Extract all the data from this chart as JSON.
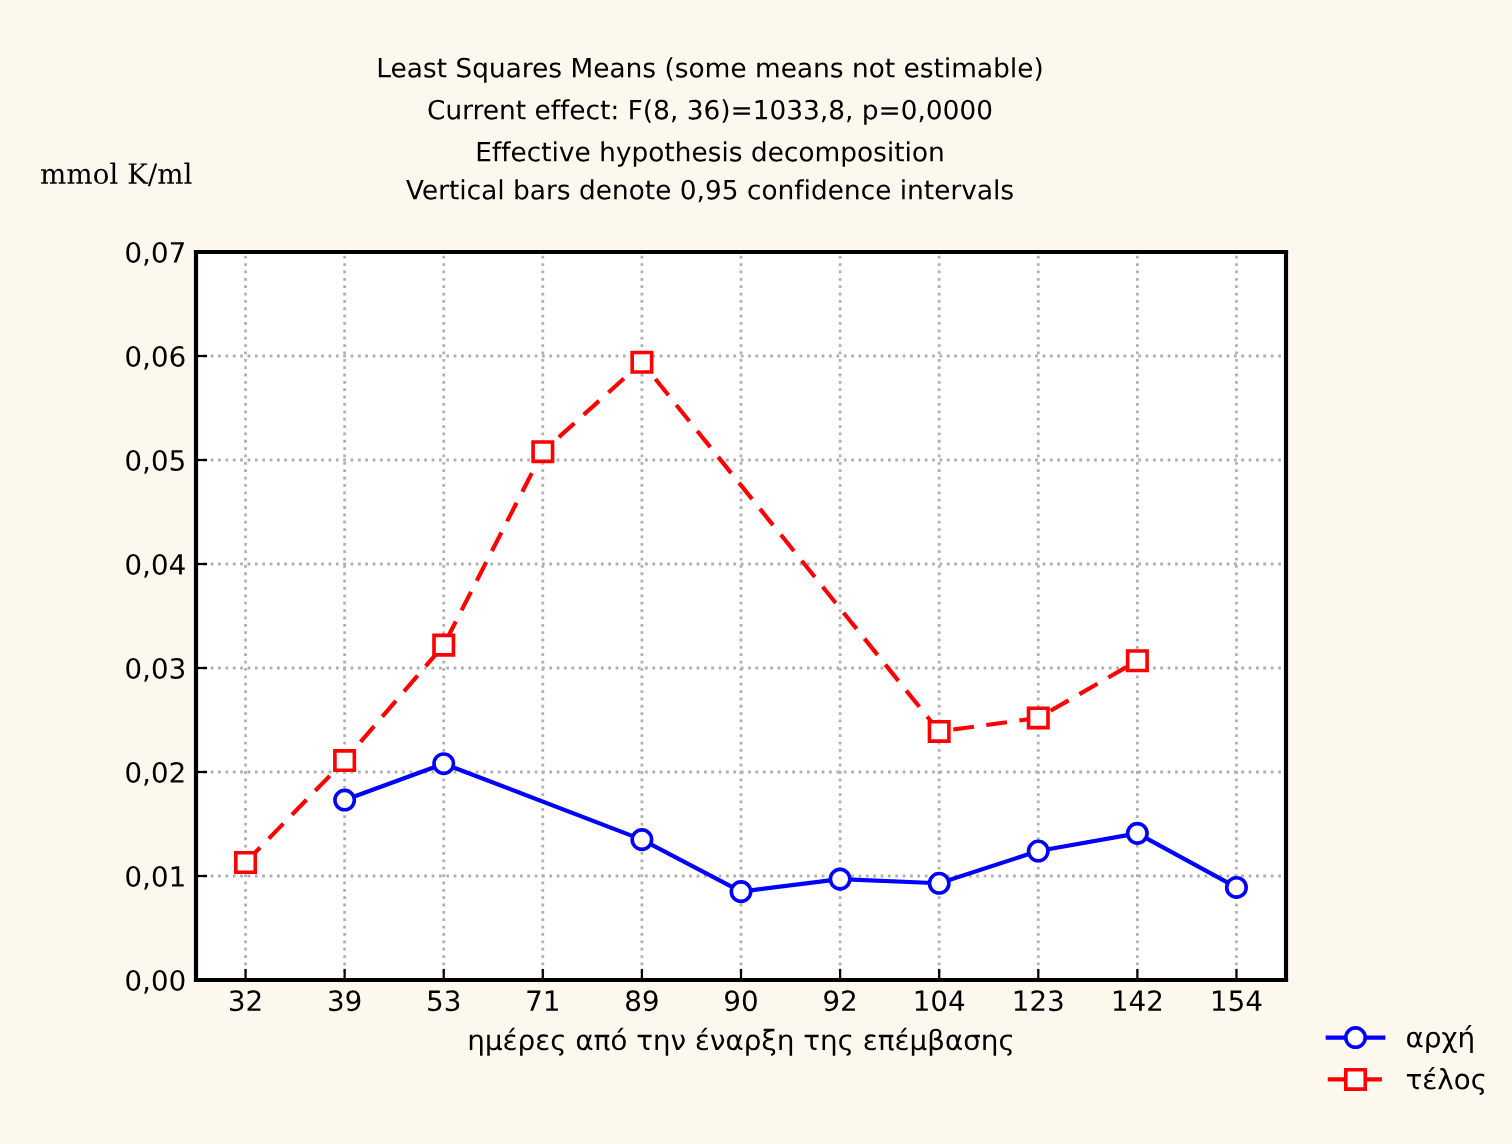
{
  "chart_data": {
    "type": "line",
    "title": "Least Squares Means (some means not estimable)",
    "subtitle": "Current effect: F(8, 36)=1033,8, p=0,0000",
    "annotations": [
      "Effective hypothesis decomposition",
      "Vertical bars denote 0,95 confidence intervals"
    ],
    "ylabel": "mmol K/ml",
    "xlabel": "ημέρες από την έναρξη της επέμβασης",
    "categories": [
      "32",
      "39",
      "53",
      "71",
      "89",
      "90",
      "92",
      "104",
      "123",
      "142",
      "154"
    ],
    "series": [
      {
        "name": "αρχή",
        "color": "#0000ff",
        "marker": "circle",
        "line_style": "solid",
        "values": [
          null,
          0.0173,
          0.0208,
          null,
          0.0135,
          0.0085,
          0.0097,
          0.0093,
          0.0124,
          0.0141,
          0.0089
        ]
      },
      {
        "name": "τέλος",
        "color": "#ff0000",
        "marker": "square",
        "line_style": "dashed",
        "values": [
          0.0113,
          0.0211,
          0.0322,
          0.0508,
          0.0594,
          null,
          null,
          0.0239,
          0.0252,
          0.0307,
          null
        ]
      }
    ],
    "ylim": [
      0,
      0.07
    ],
    "yticks": [
      {
        "value": 0,
        "label": "0,00"
      },
      {
        "value": 0.01,
        "label": "0,01"
      },
      {
        "value": 0.02,
        "label": "0,02"
      },
      {
        "value": 0.03,
        "label": "0,03"
      },
      {
        "value": 0.04,
        "label": "0,04"
      },
      {
        "value": 0.05,
        "label": "0,05"
      },
      {
        "value": 0.06,
        "label": "0,06"
      },
      {
        "value": 0.07,
        "label": "0,07"
      }
    ],
    "grid": true,
    "legend": "bottom right"
  }
}
